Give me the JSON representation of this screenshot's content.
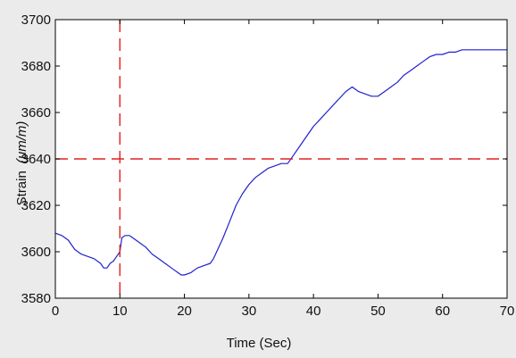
{
  "chart_data": {
    "type": "line",
    "title": "",
    "xlabel": "Time (Sec)",
    "ylabel_text": "Strain",
    "ylabel_unit": "(μm/m)",
    "xlim": [
      0,
      70
    ],
    "ylim": [
      3580,
      3700
    ],
    "xticks": [
      0,
      10,
      20,
      30,
      40,
      50,
      60,
      70
    ],
    "yticks": [
      3580,
      3600,
      3620,
      3640,
      3660,
      3680,
      3700
    ],
    "grid": false,
    "legend": "none",
    "series": [
      {
        "color": "#2020d0",
        "x": [
          0,
          1,
          2,
          3,
          4,
          5,
          6,
          7,
          7.5,
          8,
          8.5,
          9,
          9.5,
          10,
          10.3,
          10.8,
          11.5,
          12,
          13,
          14,
          15,
          16,
          17,
          18,
          18.5,
          19,
          19.5,
          20,
          21,
          22,
          23,
          24,
          24.5,
          25,
          26,
          27,
          28,
          29,
          30,
          31,
          32,
          33,
          34,
          35,
          36,
          37,
          38,
          39,
          40,
          41,
          42,
          43,
          44,
          45,
          46,
          47,
          48,
          49,
          50,
          51,
          52,
          53,
          54,
          55,
          56,
          57,
          58,
          59,
          60,
          61,
          62,
          63,
          64,
          65,
          66,
          67,
          68,
          69,
          70
        ],
        "y": [
          3608,
          3607,
          3605,
          3601,
          3599,
          3598,
          3597,
          3595,
          3593,
          3593,
          3595,
          3596,
          3598,
          3600,
          3606,
          3607,
          3607,
          3606,
          3604,
          3602,
          3599,
          3597,
          3595,
          3593,
          3592,
          3591,
          3590,
          3590,
          3591,
          3593,
          3594,
          3595,
          3597,
          3600,
          3606,
          3613,
          3620,
          3625,
          3629,
          3632,
          3634,
          3636,
          3637,
          3638,
          3638,
          3642,
          3646,
          3650,
          3654,
          3657,
          3660,
          3663,
          3666,
          3669,
          3671,
          3669,
          3668,
          3667,
          3667,
          3669,
          3671,
          3673,
          3676,
          3678,
          3680,
          3682,
          3684,
          3685,
          3685,
          3686,
          3686,
          3687,
          3687,
          3687,
          3687,
          3687,
          3687,
          3687,
          3687
        ]
      }
    ],
    "reference_lines": [
      {
        "orientation": "vertical",
        "value": 10,
        "color": "#e02020",
        "style": "dashed"
      },
      {
        "orientation": "horizontal",
        "value": 3640,
        "color": "#e02020",
        "style": "dashed"
      }
    ]
  }
}
